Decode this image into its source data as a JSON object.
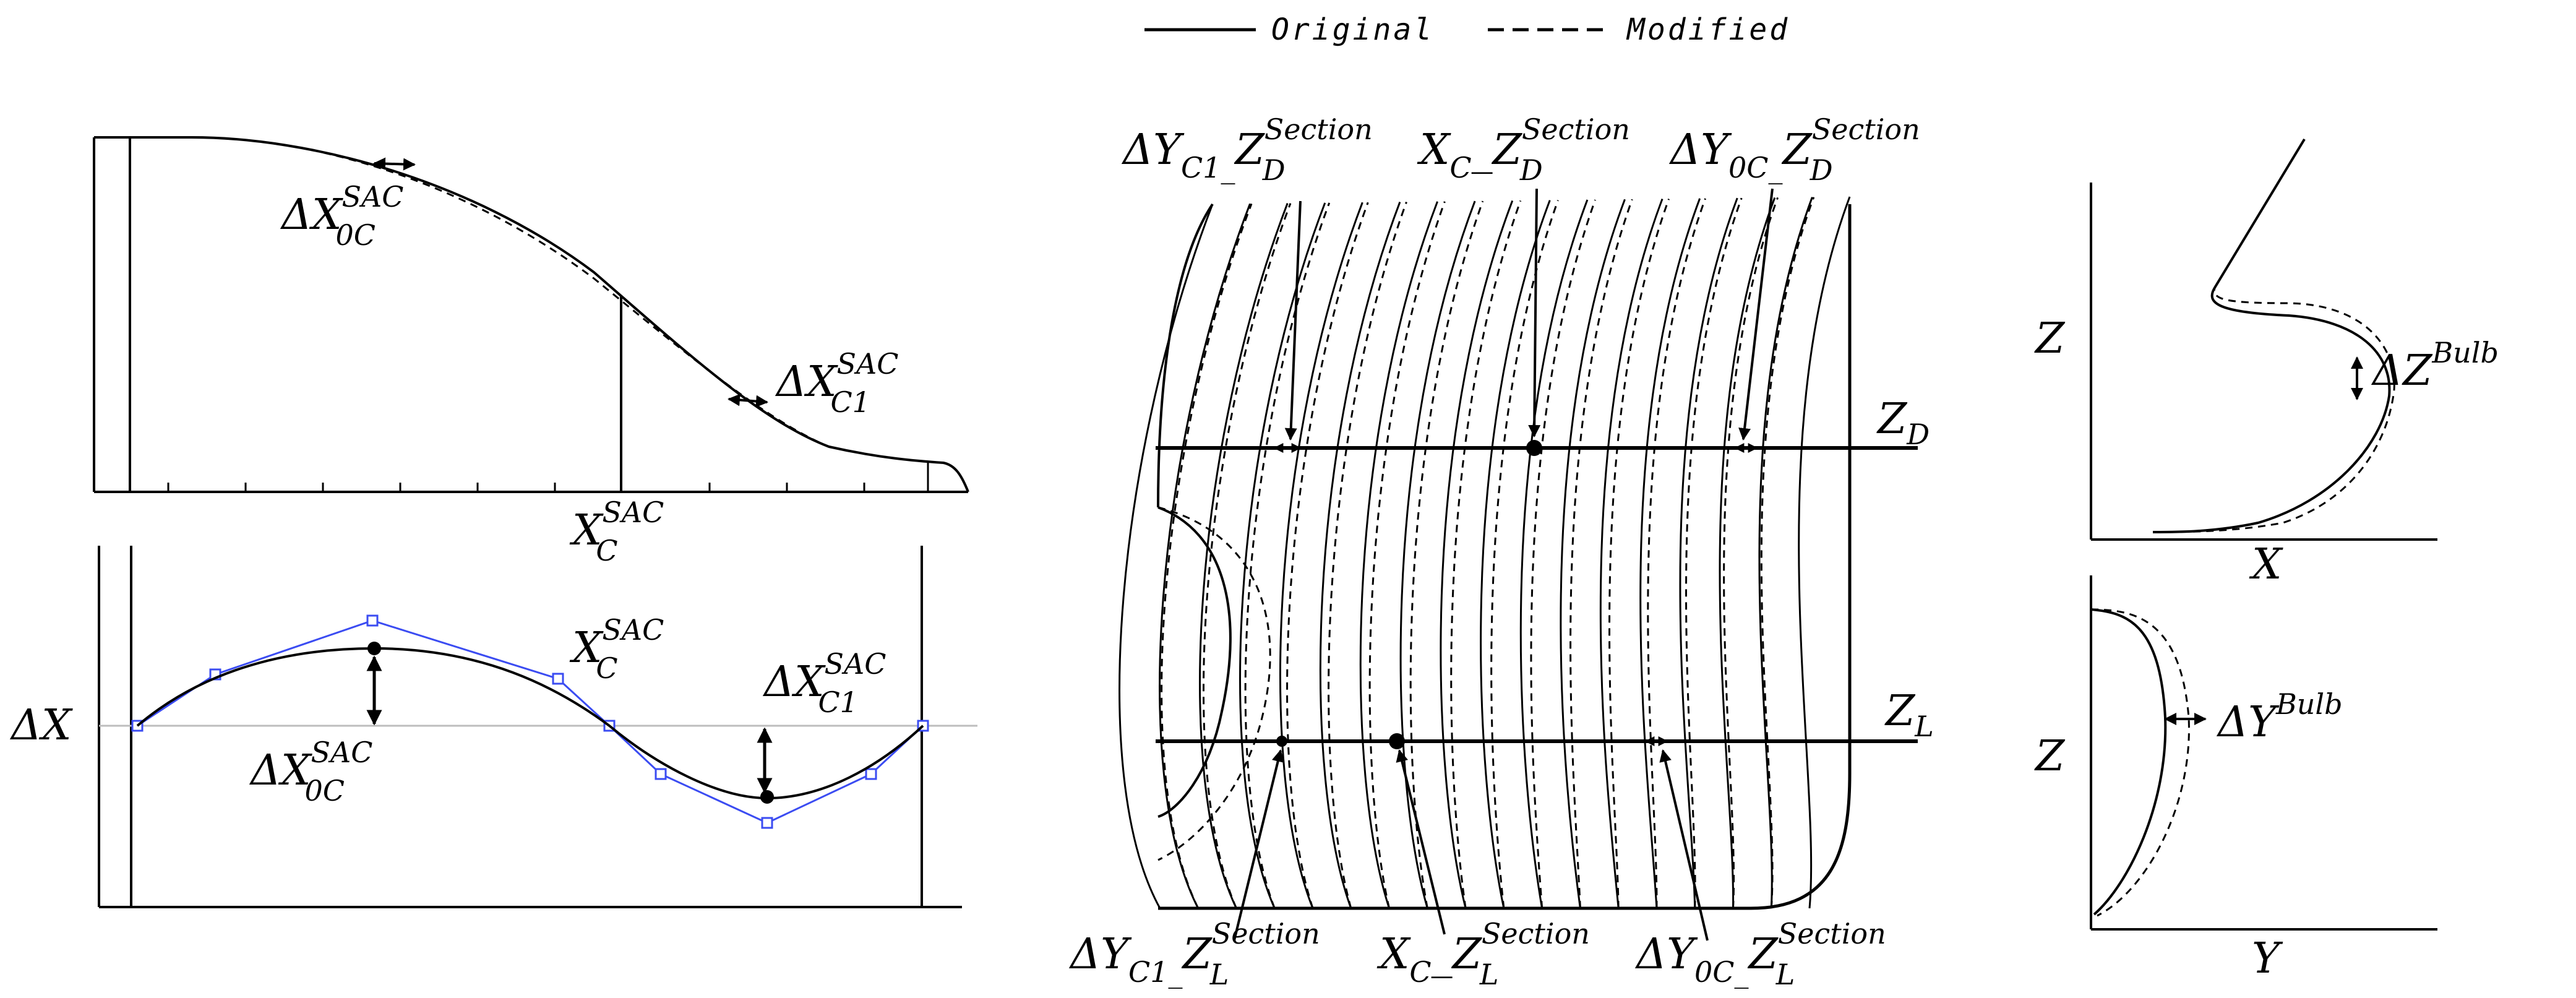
{
  "legend": {
    "original_label": "Original",
    "modified_label": "Modified"
  },
  "colors": {
    "original": "#000000",
    "modified": "#000000",
    "control_polygon": "#3b4cf2",
    "baseline": "#bdbdbd"
  },
  "sac_panel": {
    "label_dx0c": {
      "base": "ΔX",
      "sup": "SAC",
      "sub": "0C"
    },
    "label_dxc1": {
      "base": "ΔX",
      "sup": "SAC",
      "sub": "C1"
    },
    "label_xc": {
      "base": "X",
      "sup": "SAC",
      "sub": "C"
    }
  },
  "delta_panel": {
    "axis_label": "ΔX",
    "label_xc": {
      "base": "X",
      "sup": "SAC",
      "sub": "C"
    },
    "label_dxc1": {
      "base": "ΔX",
      "sup": "SAC",
      "sub": "C1"
    },
    "label_dx0c": {
      "base": "ΔX",
      "sup": "SAC",
      "sub": "0C"
    }
  },
  "body_plan": {
    "level_labels": [
      {
        "base": "Z",
        "sub": "D"
      },
      {
        "base": "Z",
        "sub": "L"
      }
    ],
    "top_labels": [
      {
        "base": "ΔY",
        "sub": "C1_",
        "base2": "Z",
        "sup": "Section",
        "sub2": "D"
      },
      {
        "base": "X",
        "sub": "C",
        "base2": "_Z",
        "sup": "Section",
        "sub2": "D"
      },
      {
        "base": "ΔY",
        "sub": "0C_",
        "base2": "Z",
        "sup": "Section",
        "sub2": "D"
      }
    ],
    "bottom_labels": [
      {
        "base": "ΔY",
        "sub": "C1_",
        "base2": "Z",
        "sup": "Section",
        "sub2": "L"
      },
      {
        "base": "X",
        "sub": "C",
        "base2": "_Z",
        "sup": "Section",
        "sub2": "L"
      },
      {
        "base": "ΔY",
        "sub": "0C_",
        "base2": "Z",
        "sup": "Section",
        "sub2": "L"
      }
    ]
  },
  "bulb_profile": {
    "axis_z": "Z",
    "axis_x": "X",
    "label": {
      "base": "ΔZ",
      "sup": "Bulb"
    }
  },
  "bulb_section": {
    "axis_z": "Z",
    "axis_y": "Y",
    "label": {
      "base": "ΔY",
      "sup": "Bulb"
    }
  }
}
